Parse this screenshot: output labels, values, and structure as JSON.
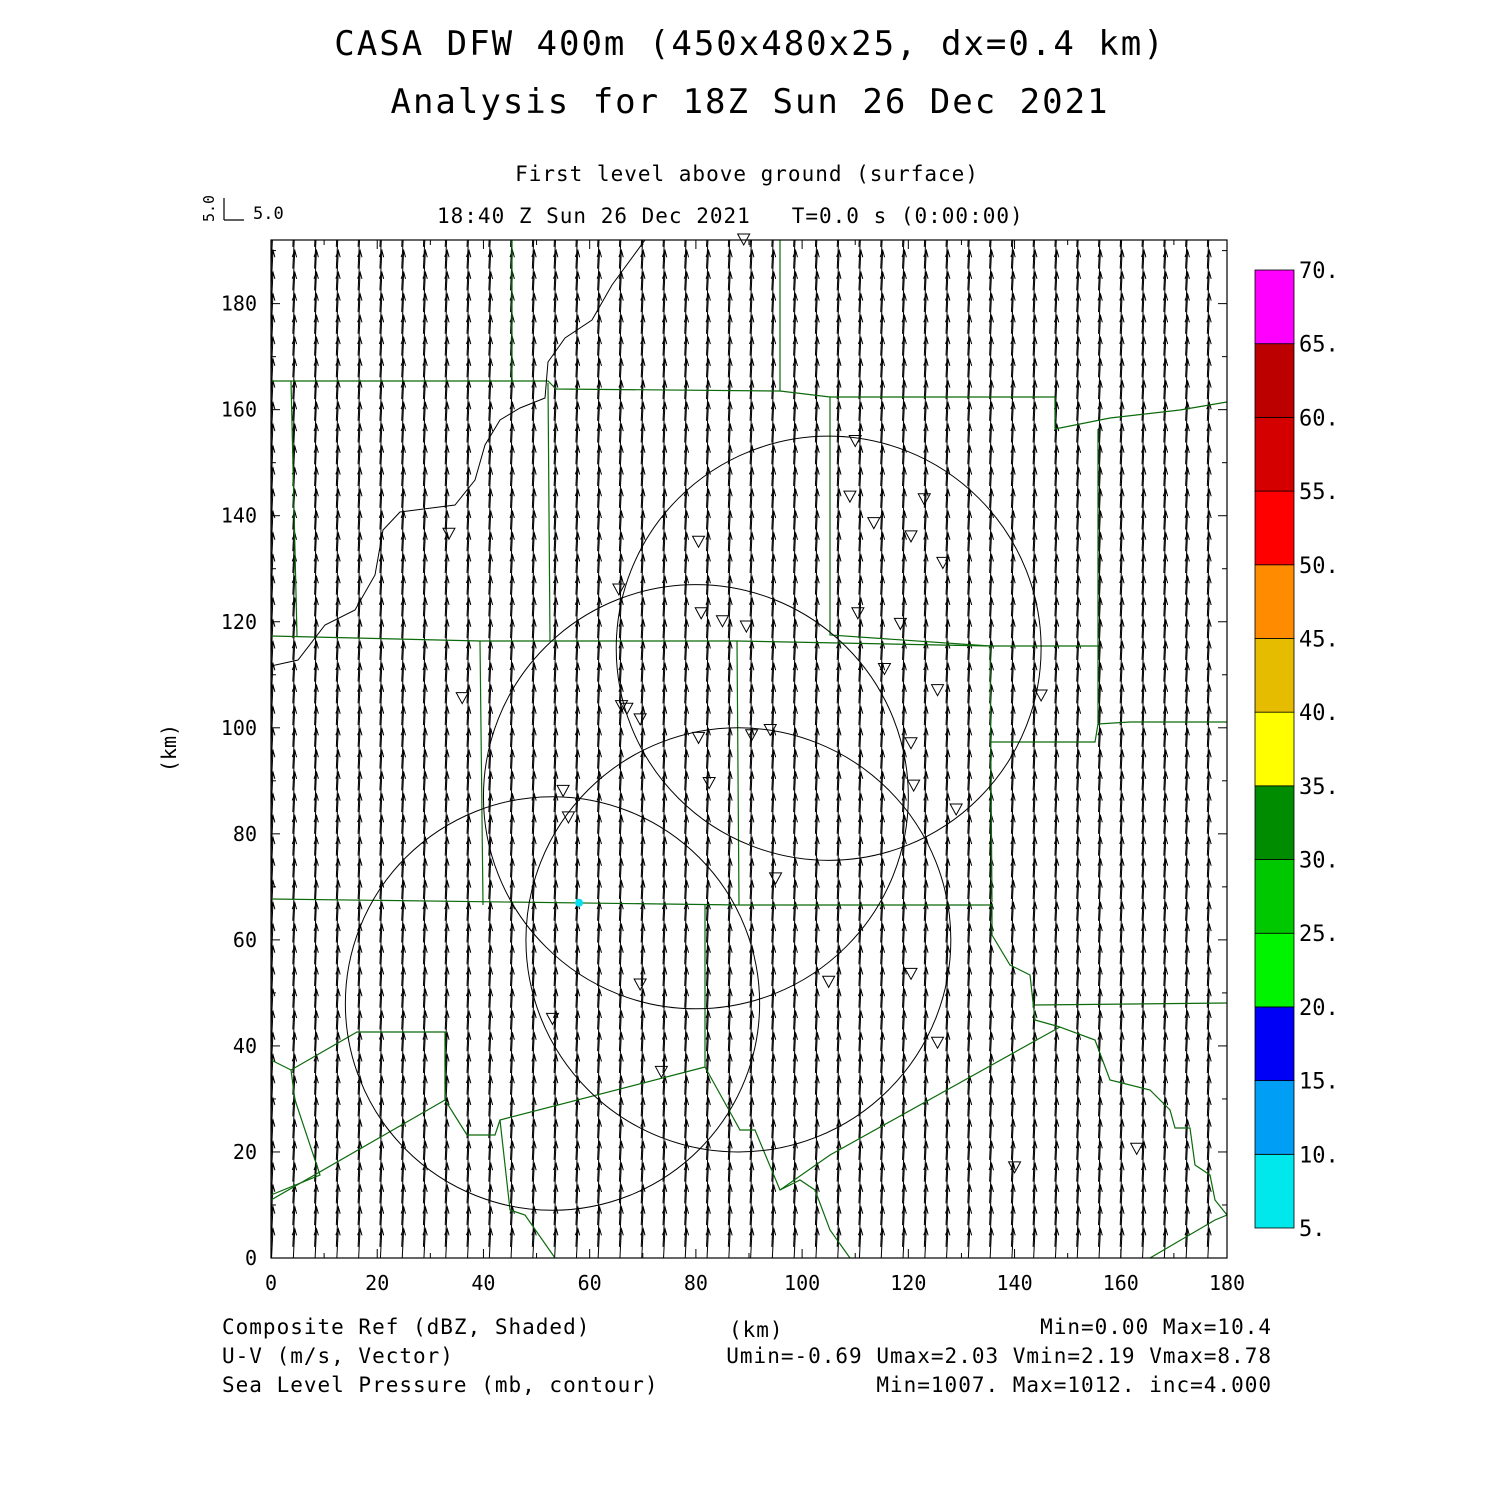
{
  "header": {
    "title1": "CASA DFW 400m (450x480x25, dx=0.4 km)",
    "title2": "Analysis for 18Z Sun 26 Dec 2021",
    "level": "First level above ground (surface)",
    "valid": "18:40 Z Sun 26 Dec 2021   T=0.0 s (0:00:00)"
  },
  "vector_key": {
    "u_label": "5.0",
    "v_label": "5.0"
  },
  "axes": {
    "x": {
      "label": "(km)",
      "range": [
        0,
        180
      ],
      "ticks": [
        "0",
        "20",
        "40",
        "60",
        "80",
        "100",
        "120",
        "140",
        "160",
        "180"
      ]
    },
    "y": {
      "label": "(km)",
      "range": [
        0,
        192
      ],
      "ticks": [
        "0",
        "20",
        "40",
        "60",
        "80",
        "100",
        "120",
        "140",
        "160",
        "180"
      ]
    }
  },
  "colorbar": {
    "labels": [
      "5.",
      "10.",
      "15.",
      "20.",
      "25.",
      "30.",
      "35.",
      "40.",
      "45.",
      "50.",
      "55.",
      "60.",
      "65.",
      "70."
    ],
    "colors": [
      "#00e8ec",
      "#009ef5",
      "#0000f6",
      "#00f400",
      "#00c800",
      "#008c00",
      "#ffff00",
      "#e6bc00",
      "#ff8c00",
      "#ff0000",
      "#d40000",
      "#bc0000",
      "#ff00ff"
    ]
  },
  "footer": {
    "left1": "Composite Ref (dBZ, Shaded)",
    "left2": "U-V (m/s, Vector)",
    "left3": "Sea Level Pressure (mb, contour)",
    "center": "(km)",
    "right1": "Min=0.00 Max=10.4",
    "right2": "Umin=-0.69 Umax=2.03 Vmin=2.19 Vmax=8.78",
    "right3": "Min=1007. Max=1012. inc=4.000"
  },
  "map_data": {
    "units": "km",
    "radar_rings": [
      {
        "center": [
          53,
          48
        ],
        "radius": 39
      },
      {
        "center": [
          80,
          87
        ],
        "radius": 40
      },
      {
        "center": [
          105,
          115
        ],
        "radius": 40
      },
      {
        "center": [
          88,
          60
        ],
        "radius": 40
      }
    ],
    "stations": [
      [
        89,
        192
      ],
      [
        33.5,
        136.5
      ],
      [
        36,
        105.5
      ],
      [
        65.5,
        126
      ],
      [
        80.5,
        135
      ],
      [
        81,
        121.5
      ],
      [
        85,
        120
      ],
      [
        89.5,
        119
      ],
      [
        66,
        104
      ],
      [
        67,
        103.5
      ],
      [
        69.5,
        101.5
      ],
      [
        80.5,
        98
      ],
      [
        90.5,
        98.5
      ],
      [
        94,
        99.5
      ],
      [
        82.5,
        89.5
      ],
      [
        55,
        88
      ],
      [
        56,
        83
      ],
      [
        95,
        71.5
      ],
      [
        69.5,
        51.5
      ],
      [
        53,
        45
      ],
      [
        73.5,
        35
      ],
      [
        105,
        52
      ],
      [
        120.5,
        53.5
      ],
      [
        125.5,
        40.5
      ],
      [
        110,
        154
      ],
      [
        109,
        143.5
      ],
      [
        113.5,
        138.5
      ],
      [
        123,
        143
      ],
      [
        120.5,
        136
      ],
      [
        126.5,
        131
      ],
      [
        110.5,
        121.5
      ],
      [
        118.5,
        119.5
      ],
      [
        115.5,
        111
      ],
      [
        125.5,
        107
      ],
      [
        120.5,
        97
      ],
      [
        121,
        89
      ],
      [
        129,
        84.5
      ],
      [
        145,
        106
      ],
      [
        163,
        20.5
      ],
      [
        140,
        17
      ]
    ],
    "cyan_dot": [
      58,
      67
    ],
    "wind_vector": {
      "u": 0.4,
      "v": 8.0
    }
  }
}
